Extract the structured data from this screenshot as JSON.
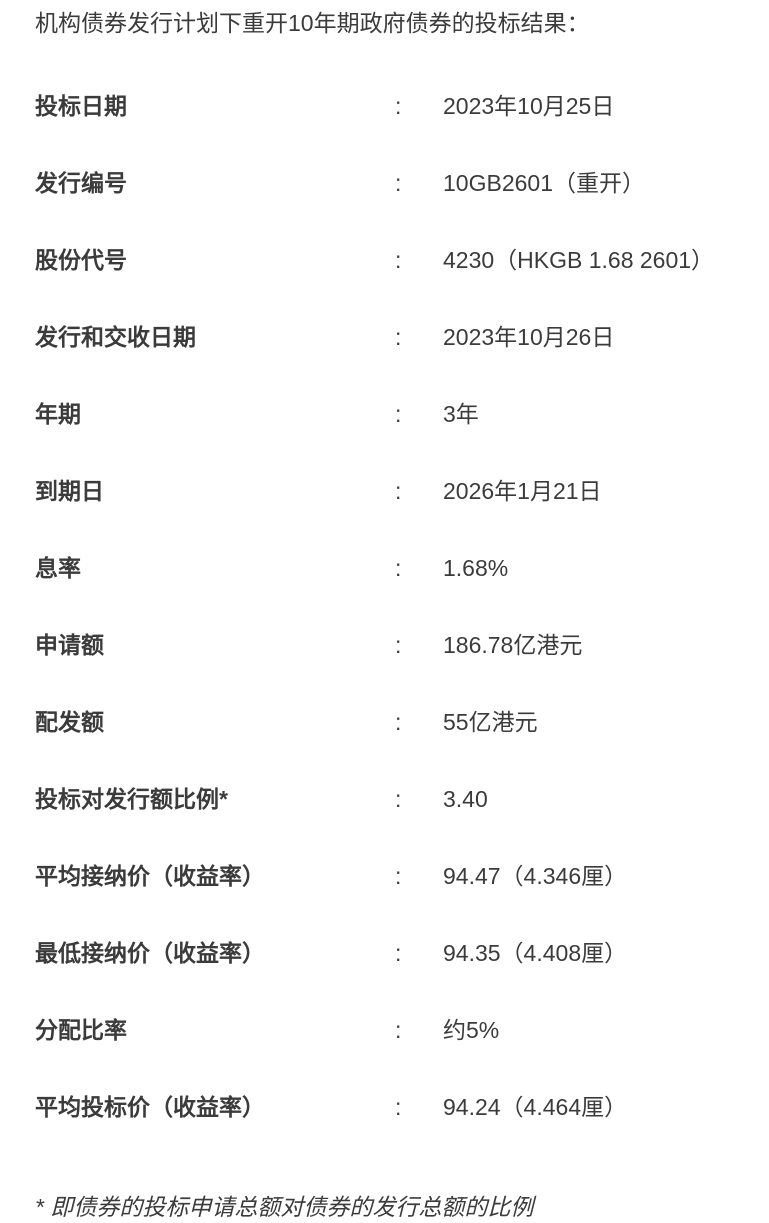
{
  "title": "机构债券发行计划下重开10年期政府债券的投标结果：",
  "table": {
    "separator": ":",
    "rows": [
      {
        "label": "投标日期",
        "value": "2023年10月25日"
      },
      {
        "label": "发行编号",
        "value": "10GB2601（重开）"
      },
      {
        "label": "股份代号",
        "value": "4230（HKGB 1.68 2601）"
      },
      {
        "label": "发行和交收日期",
        "value": "2023年10月26日"
      },
      {
        "label": "年期",
        "value": "3年"
      },
      {
        "label": "到期日",
        "value": "2026年1月21日"
      },
      {
        "label": "息率",
        "value": "1.68%"
      },
      {
        "label": "申请额",
        "value": "186.78亿港元"
      },
      {
        "label": "配发额",
        "value": "55亿港元"
      },
      {
        "label": "投标对发行额比例*",
        "value": "3.40"
      },
      {
        "label": "平均接纳价（收益率）",
        "value": "94.47（4.346厘）"
      },
      {
        "label": "最低接纳价（收益率）",
        "value": "94.35（4.408厘）"
      },
      {
        "label": "分配比率",
        "value": "约5%"
      },
      {
        "label": "平均投标价（收益率）",
        "value": "94.24（4.464厘）"
      }
    ]
  },
  "footnote": "* 即债券的投标申请总额对债券的发行总额的比例",
  "colors": {
    "text": "#3b3b3b",
    "background": "#ffffff"
  }
}
